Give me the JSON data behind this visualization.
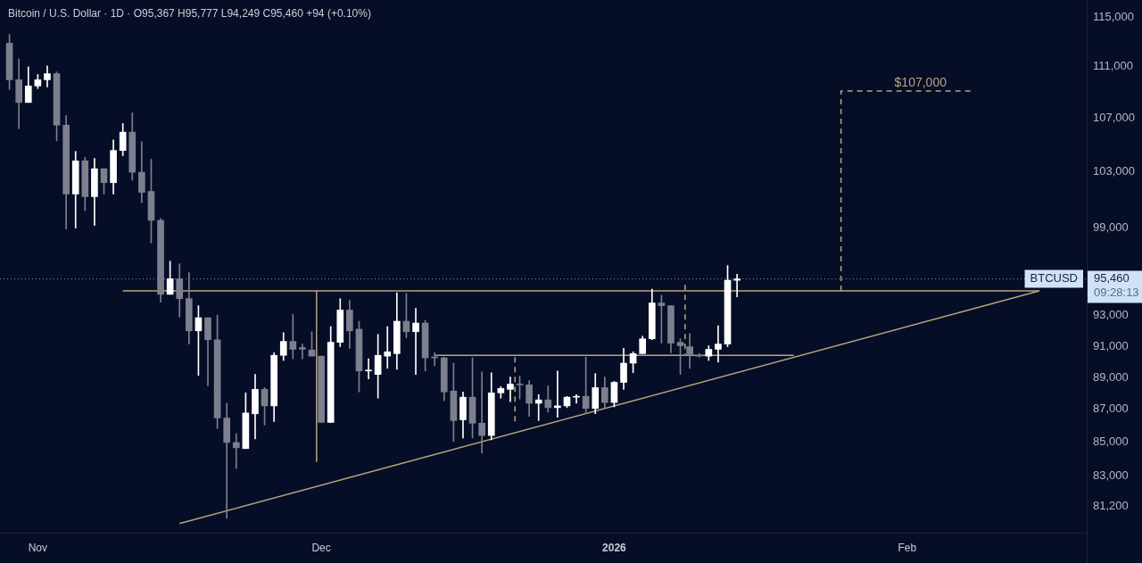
{
  "chart_data": {
    "type": "candlestick",
    "title": "Bitcoin / U.S. Dollar · 1D · O95,367 H95,777 L94,249 C95,460 +94 (+0.10%)",
    "x": [
      "2025-10-29",
      "2025-10-30",
      "2025-10-31",
      "2025-11-01",
      "2025-11-02",
      "2025-11-03",
      "2025-11-04",
      "2025-11-05",
      "2025-11-06",
      "2025-11-07",
      "2025-11-08",
      "2025-11-09",
      "2025-11-10",
      "2025-11-11",
      "2025-11-12",
      "2025-11-13",
      "2025-11-14",
      "2025-11-15",
      "2025-11-16",
      "2025-11-17",
      "2025-11-18",
      "2025-11-19",
      "2025-11-20",
      "2025-11-21",
      "2025-11-22",
      "2025-11-23",
      "2025-11-24",
      "2025-11-25",
      "2025-11-26",
      "2025-11-27",
      "2025-11-28",
      "2025-11-29",
      "2025-11-30",
      "2025-12-01",
      "2025-12-02",
      "2025-12-03",
      "2025-12-04",
      "2025-12-05",
      "2025-12-06",
      "2025-12-07",
      "2025-12-08",
      "2025-12-09",
      "2025-12-10",
      "2025-12-11",
      "2025-12-12",
      "2025-12-13",
      "2025-12-14",
      "2025-12-15",
      "2025-12-16",
      "2025-12-17",
      "2025-12-18",
      "2025-12-19",
      "2025-12-20",
      "2025-12-21",
      "2025-12-22",
      "2025-12-23",
      "2025-12-24",
      "2025-12-25",
      "2025-12-26",
      "2025-12-27",
      "2025-12-28",
      "2025-12-29",
      "2025-12-30",
      "2025-12-31",
      "2026-01-01",
      "2026-01-02",
      "2026-01-03",
      "2026-01-04",
      "2026-01-05",
      "2026-01-06",
      "2026-01-07",
      "2026-01-08",
      "2026-01-09",
      "2026-01-10",
      "2026-01-11",
      "2026-01-12",
      "2026-01-13",
      "2026-01-14"
    ],
    "ohlc": [
      [
        112880,
        113580,
        109230,
        109980
      ],
      [
        109980,
        111630,
        106220,
        108220
      ],
      [
        108220,
        111000,
        108220,
        109500
      ],
      [
        109500,
        110390,
        109300,
        109980
      ],
      [
        109980,
        111070,
        109430,
        110460
      ],
      [
        110460,
        110590,
        105310,
        106490
      ],
      [
        106490,
        107210,
        98910,
        101400
      ],
      [
        101400,
        104520,
        98970,
        103820
      ],
      [
        103820,
        104070,
        100210,
        101210
      ],
      [
        101210,
        104000,
        99160,
        103240
      ],
      [
        103240,
        103240,
        101400,
        102220
      ],
      [
        102220,
        105370,
        101400,
        104590
      ],
      [
        104590,
        106620,
        104200,
        105960
      ],
      [
        105960,
        107420,
        102410,
        102980
      ],
      [
        102980,
        105240,
        100770,
        101520
      ],
      [
        101590,
        103940,
        97940,
        99520
      ],
      [
        99520,
        99650,
        93890,
        94420
      ],
      [
        94420,
        96670,
        94420,
        95470
      ],
      [
        95470,
        96490,
        92910,
        94130
      ],
      [
        94130,
        95890,
        91140,
        92000
      ],
      [
        92000,
        93660,
        89130,
        92860
      ],
      [
        92860,
        92860,
        88470,
        91420
      ],
      [
        91420,
        93030,
        85830,
        86470
      ],
      [
        86470,
        87380,
        80520,
        84980
      ],
      [
        84980,
        85510,
        83420,
        84660
      ],
      [
        84610,
        88030,
        84610,
        86780
      ],
      [
        86730,
        89190,
        85190,
        88250
      ],
      [
        88250,
        88360,
        86040,
        87220
      ],
      [
        87220,
        90580,
        86250,
        90410
      ],
      [
        90410,
        91880,
        90080,
        91310
      ],
      [
        91310,
        93080,
        90190,
        90800
      ],
      [
        90910,
        91140,
        90190,
        90800
      ],
      [
        90750,
        91940,
        90360,
        90360
      ],
      [
        90360,
        90360,
        86200,
        86200
      ],
      [
        86200,
        92280,
        86200,
        91250
      ],
      [
        91250,
        94130,
        90970,
        93370
      ],
      [
        93370,
        94010,
        90860,
        92000
      ],
      [
        92110,
        92630,
        88090,
        89410
      ],
      [
        89410,
        90190,
        88910,
        89460
      ],
      [
        89190,
        91770,
        87700,
        90410
      ],
      [
        90360,
        92280,
        89580,
        90640
      ],
      [
        90520,
        94530,
        89520,
        92630
      ],
      [
        92630,
        94480,
        91540,
        91940
      ],
      [
        91940,
        93490,
        89190,
        92510
      ],
      [
        92510,
        92690,
        89410,
        90250
      ],
      [
        90300,
        90580,
        89740,
        90250
      ],
      [
        90250,
        90300,
        87540,
        88090
      ],
      [
        88140,
        89910,
        85040,
        86310
      ],
      [
        86360,
        88090,
        85250,
        87760
      ],
      [
        87760,
        90250,
        85250,
        86150
      ],
      [
        86150,
        89350,
        84350,
        85400
      ],
      [
        85400,
        89300,
        85140,
        88030
      ],
      [
        88030,
        88420,
        87700,
        88310
      ],
      [
        88250,
        89020,
        87480,
        88580
      ],
      [
        88580,
        89080,
        87650,
        88530
      ],
      [
        88530,
        88800,
        86570,
        87380
      ],
      [
        87380,
        87920,
        86310,
        87590
      ],
      [
        87590,
        88470,
        86840,
        87110
      ],
      [
        87110,
        89410,
        86520,
        87220
      ],
      [
        87220,
        87810,
        87110,
        87760
      ],
      [
        87760,
        87920,
        87380,
        87800
      ],
      [
        87810,
        90300,
        86730,
        87060
      ],
      [
        87060,
        89250,
        86730,
        88360
      ],
      [
        88360,
        89020,
        87110,
        87430
      ],
      [
        87430,
        88750,
        87160,
        88690
      ],
      [
        88690,
        90860,
        88250,
        89910
      ],
      [
        89910,
        90640,
        89300,
        90520
      ],
      [
        90520,
        91650,
        90520,
        91480
      ],
      [
        91480,
        94770,
        91420,
        93840
      ],
      [
        93840,
        94360,
        91200,
        93660
      ],
      [
        93660,
        93660,
        90580,
        91200
      ],
      [
        91250,
        91480,
        89190,
        91030
      ],
      [
        90970,
        91820,
        89580,
        90470
      ],
      [
        90410,
        90520,
        90300,
        90360
      ],
      [
        90360,
        91030,
        90080,
        90800
      ],
      [
        90800,
        92340,
        89970,
        91140
      ],
      [
        91140,
        96370,
        90970,
        95370
      ],
      [
        95367,
        95777,
        94249,
        95460
      ]
    ],
    "colors": [
      "#7c7f8d",
      "#7c7f8d",
      "#ffffff",
      "#ffffff",
      "#ffffff",
      "#7c7f8d",
      "#7c7f8d",
      "#ffffff",
      "#7c7f8d",
      "#ffffff",
      "#7c7f8d",
      "#ffffff",
      "#ffffff",
      "#7c7f8d",
      "#7c7f8d",
      "#7c7f8d",
      "#7c7f8d",
      "#ffffff",
      "#7c7f8d",
      "#7c7f8d",
      "#ffffff",
      "#7c7f8d",
      "#7c7f8d",
      "#7c7f8d",
      "#7c7f8d",
      "#ffffff",
      "#ffffff",
      "#7c7f8d",
      "#ffffff",
      "#ffffff",
      "#7c7f8d",
      "#7c7f8d",
      "#7c7f8d",
      "#7c7f8d",
      "#ffffff",
      "#ffffff",
      "#7c7f8d",
      "#7c7f8d",
      "#ffffff",
      "#ffffff",
      "#ffffff",
      "#ffffff",
      "#7c7f8d",
      "#ffffff",
      "#7c7f8d",
      "#7c7f8d",
      "#7c7f8d",
      "#7c7f8d",
      "#ffffff",
      "#7c7f8d",
      "#7c7f8d",
      "#ffffff",
      "#ffffff",
      "#ffffff",
      "#7c7f8d",
      "#7c7f8d",
      "#ffffff",
      "#7c7f8d",
      "#ffffff",
      "#ffffff",
      "#ffffff",
      "#7c7f8d",
      "#ffffff",
      "#7c7f8d",
      "#ffffff",
      "#ffffff",
      "#ffffff",
      "#ffffff",
      "#ffffff",
      "#7c7f8d",
      "#7c7f8d",
      "#7c7f8d",
      "#7c7f8d",
      "#7c7f8d",
      "#ffffff",
      "#ffffff",
      "#ffffff",
      "#ffffff"
    ],
    "series": [
      {
        "type": "line",
        "color": "#b8a57c",
        "line_style": "solid",
        "x": [
          "2025-11-10",
          "2026-02-15"
        ],
        "values": [
          94650,
          94650
        ]
      },
      {
        "type": "line",
        "color": "#b8a57c",
        "line_style": "solid",
        "x": [
          "2025-11-16",
          "2026-02-15"
        ],
        "values": [
          80220,
          94650
        ]
      },
      {
        "type": "line",
        "color": "#b8a57c",
        "line_style": "solid",
        "x": [
          "2025-12-13",
          "2026-01-20"
        ],
        "values": [
          90410,
          90410
        ]
      },
      {
        "type": "line",
        "color": "#b8a57c",
        "line_style": "solid",
        "x": [
          "2025-11-30T12:00",
          "2025-11-30T12:00"
        ],
        "values": [
          94650,
          83830
        ]
      },
      {
        "type": "line",
        "color": "#b8a57c",
        "line_style": "dashed",
        "x": [
          "2025-12-21T12:00",
          "2025-12-21T12:00"
        ],
        "values": [
          90300,
          86200
        ]
      },
      {
        "type": "line",
        "color": "#b8a57c",
        "line_style": "dashed",
        "x": [
          "2026-01-08T12:00",
          "2026-01-08T12:00"
        ],
        "values": [
          95060,
          90470
        ]
      },
      {
        "type": "line",
        "name": "$107,000",
        "color": "#b8a57c",
        "line_style": "dashed",
        "x": [
          "2026-01-25",
          "2026-01-25",
          "2026-02-08"
        ],
        "values": [
          94650,
          109100,
          109100
        ]
      }
    ],
    "ref_lines": [
      {
        "axis": "y",
        "value": 95460,
        "label": "BTCUSD",
        "color": "#8a90a8",
        "line_style": "dotted"
      }
    ],
    "annotations": [
      "95,460",
      "09:28:13"
    ],
    "log": "y",
    "xlim": [
      "2025-10-28",
      "2026-02-20"
    ],
    "xticks": [
      {
        "value": "2025-11-01",
        "label": "Nov"
      },
      {
        "value": "2025-12-01",
        "label": "Dec"
      },
      {
        "value": "2026-01-01",
        "label": "2026"
      },
      {
        "value": "2026-02-01",
        "label": "Feb"
      }
    ],
    "ylim": [
      79700,
      116400
    ],
    "yticks": [
      {
        "value": 81200,
        "label": "81,200"
      },
      {
        "value": 83000,
        "label": "83,000"
      },
      {
        "value": 85000,
        "label": "85,000"
      },
      {
        "value": 87000,
        "label": "87,000"
      },
      {
        "value": 89000,
        "label": "89,000"
      },
      {
        "value": 91000,
        "label": "91,000"
      },
      {
        "value": 93000,
        "label": "93,000"
      },
      {
        "value": 99000,
        "label": "99,000"
      },
      {
        "value": 103000,
        "label": "103,000"
      },
      {
        "value": 107000,
        "label": "107,000"
      },
      {
        "value": 111000,
        "label": "111,000"
      },
      {
        "value": 115000,
        "label": "115,000"
      }
    ]
  }
}
